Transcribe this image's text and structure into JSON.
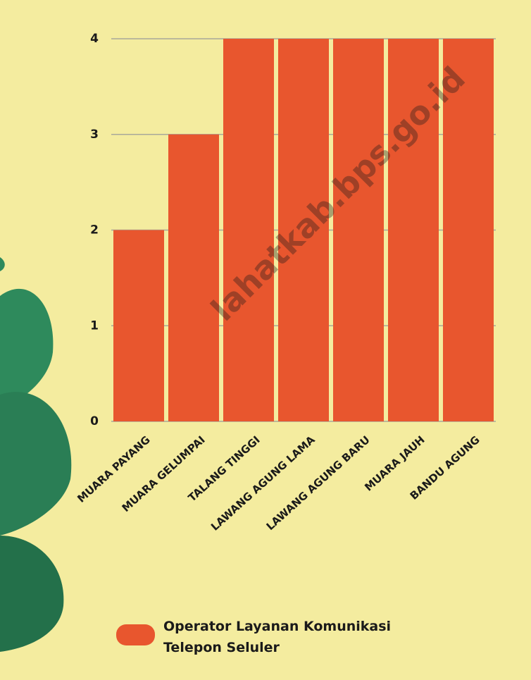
{
  "watermark": "lahatkab.bps.go.id",
  "chart_data": {
    "type": "bar",
    "categories": [
      "MUARA PAYANG",
      "MUARA GELUMPAI",
      "TALANG TINGGI",
      "LAWANG AGUNG LAMA",
      "LAWANG AGUNG BARU",
      "MUARA JAUH",
      "BANDU AGUNG"
    ],
    "series": [
      {
        "name": "Operator Layanan Komunikasi Telepon Seluler",
        "color": "#e8562e",
        "values": [
          2,
          3,
          4,
          4,
          4,
          4,
          4
        ]
      }
    ],
    "ylim": [
      0,
      4
    ],
    "yticks": [
      0,
      1,
      2,
      3,
      4
    ],
    "grid": true
  }
}
